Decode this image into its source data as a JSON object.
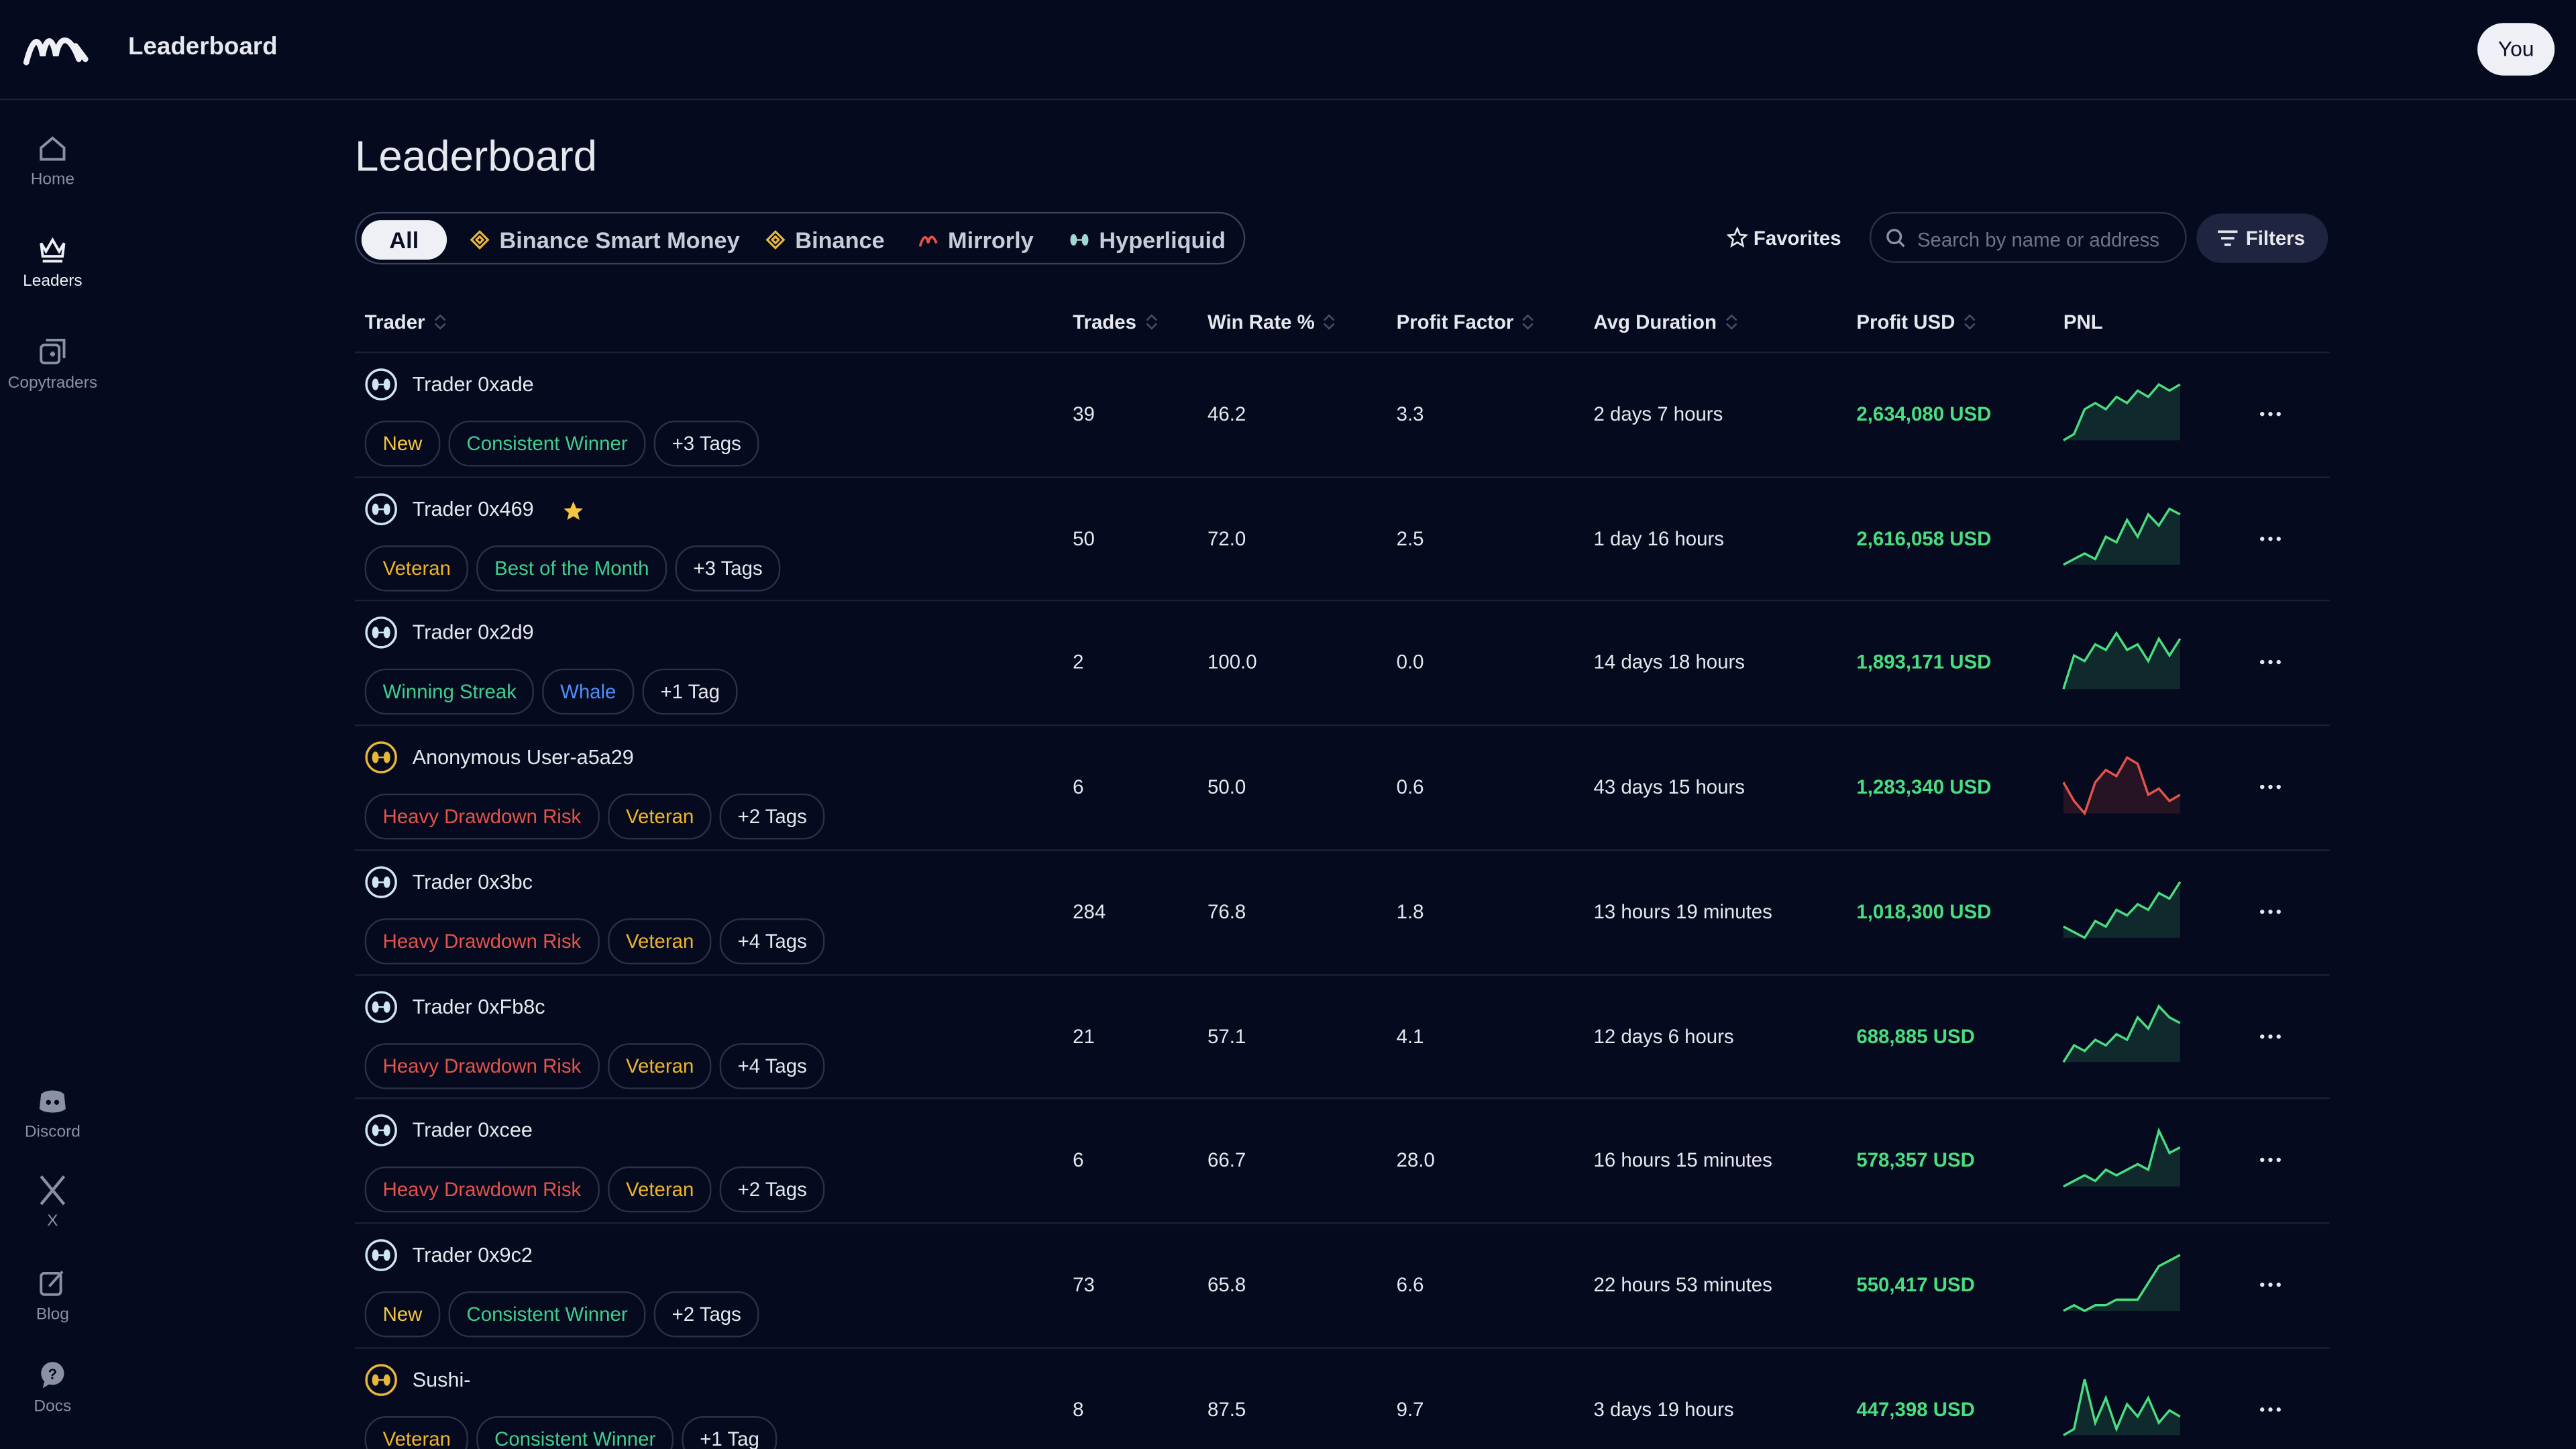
{
  "header": {
    "title": "Leaderboard",
    "user": "You"
  },
  "sidebar": {
    "items": [
      "Home",
      "Leaders",
      "Copytraders",
      "Discord",
      "X",
      "Blog",
      "Docs"
    ]
  },
  "page_title": "Leaderboard",
  "filters": {
    "tabs": [
      "All",
      "Binance Smart Money",
      "Binance",
      "Mirrorly",
      "Hyperliquid"
    ],
    "favorites": "Favorites",
    "search_placeholder": "Search by name or address",
    "filters_button": "Filters"
  },
  "table": {
    "columns": [
      "Trader",
      "Trades",
      "Win Rate %",
      "Profit Factor",
      "Avg Duration",
      "Profit USD",
      "PNL"
    ],
    "rows": [
      {
        "name": "Trader 0xade",
        "icon_color": "#cfe6f2",
        "favorite": false,
        "tags": [
          {
            "text": "New",
            "color": "#f5c542"
          },
          {
            "text": "Consistent Winner",
            "color": "#3ecf8e"
          },
          {
            "text": "+3 Tags",
            "color": "#e6e8ee"
          }
        ],
        "trades": "39",
        "win_rate": "46.2",
        "profit_factor": "3.3",
        "avg_duration": "2 days 7 hours",
        "profit_usd": "2,634,080 USD",
        "pnl_color": "#4ade80",
        "pnl": [
          1,
          2,
          6,
          7,
          6,
          8,
          7,
          9,
          8,
          10,
          9,
          10
        ]
      },
      {
        "name": "Trader 0x469",
        "icon_color": "#cfe6f2",
        "favorite": true,
        "tags": [
          {
            "text": "Veteran",
            "color": "#f0b429"
          },
          {
            "text": "Best of the Month",
            "color": "#3ecf8e"
          },
          {
            "text": "+3 Tags",
            "color": "#e6e8ee"
          }
        ],
        "trades": "50",
        "win_rate": "72.0",
        "profit_factor": "2.5",
        "avg_duration": "1 day 16 hours",
        "profit_usd": "2,616,058 USD",
        "pnl_color": "#4ade80",
        "pnl": [
          0,
          1,
          2,
          1,
          5,
          4,
          8,
          5,
          9,
          7,
          10,
          9
        ]
      },
      {
        "name": "Trader 0x2d9",
        "icon_color": "#cfe6f2",
        "favorite": false,
        "tags": [
          {
            "text": "Winning Streak",
            "color": "#3ecf8e"
          },
          {
            "text": "Whale",
            "color": "#4d8ef7"
          },
          {
            "text": "+1 Tag",
            "color": "#e6e8ee"
          }
        ],
        "trades": "2",
        "win_rate": "100.0",
        "profit_factor": "0.0",
        "avg_duration": "14 days 18 hours",
        "profit_usd": "1,893,171 USD",
        "pnl_color": "#4ade80",
        "pnl": [
          0,
          6,
          5,
          8,
          7,
          10,
          7,
          8,
          5,
          9,
          6,
          9
        ]
      },
      {
        "name": "Anonymous User-a5a29",
        "icon_color": "#e8b73a",
        "favorite": false,
        "tags": [
          {
            "text": "Heavy Drawdown Risk",
            "color": "#e5534b"
          },
          {
            "text": "Veteran",
            "color": "#f0b429"
          },
          {
            "text": "+2 Tags",
            "color": "#e6e8ee"
          }
        ],
        "trades": "6",
        "win_rate": "50.0",
        "profit_factor": "0.6",
        "avg_duration": "43 days 15 hours",
        "profit_usd": "1,283,340 USD",
        "pnl_color": "#e5534b",
        "pnl": [
          6,
          3,
          1,
          6,
          8,
          7,
          10,
          9,
          4,
          5,
          3,
          4
        ]
      },
      {
        "name": "Trader 0x3bc",
        "icon_color": "#cfe6f2",
        "favorite": false,
        "tags": [
          {
            "text": "Heavy Drawdown Risk",
            "color": "#e5534b"
          },
          {
            "text": "Veteran",
            "color": "#f0b429"
          },
          {
            "text": "+4 Tags",
            "color": "#e6e8ee"
          }
        ],
        "trades": "284",
        "win_rate": "76.8",
        "profit_factor": "1.8",
        "avg_duration": "13 hours 19 minutes",
        "profit_usd": "1,018,300 USD",
        "pnl_color": "#4ade80",
        "pnl": [
          2,
          1,
          0,
          3,
          2,
          5,
          4,
          6,
          5,
          8,
          7,
          10
        ]
      },
      {
        "name": "Trader 0xFb8c",
        "icon_color": "#cfe6f2",
        "favorite": false,
        "tags": [
          {
            "text": "Heavy Drawdown Risk",
            "color": "#e5534b"
          },
          {
            "text": "Veteran",
            "color": "#f0b429"
          },
          {
            "text": "+4 Tags",
            "color": "#e6e8ee"
          }
        ],
        "trades": "21",
        "win_rate": "57.1",
        "profit_factor": "4.1",
        "avg_duration": "12 days 6 hours",
        "profit_usd": "688,885 USD",
        "pnl_color": "#4ade80",
        "pnl": [
          0,
          3,
          2,
          4,
          3,
          5,
          4,
          8,
          6,
          10,
          8,
          7
        ]
      },
      {
        "name": "Trader 0xcee",
        "icon_color": "#cfe6f2",
        "favorite": false,
        "tags": [
          {
            "text": "Heavy Drawdown Risk",
            "color": "#e5534b"
          },
          {
            "text": "Veteran",
            "color": "#f0b429"
          },
          {
            "text": "+2 Tags",
            "color": "#e6e8ee"
          }
        ],
        "trades": "6",
        "win_rate": "66.7",
        "profit_factor": "28.0",
        "avg_duration": "16 hours 15 minutes",
        "profit_usd": "578,357 USD",
        "pnl_color": "#4ade80",
        "pnl": [
          0,
          1,
          2,
          1,
          3,
          2,
          3,
          4,
          3,
          10,
          6,
          7
        ]
      },
      {
        "name": "Trader 0x9c2",
        "icon_color": "#cfe6f2",
        "favorite": false,
        "tags": [
          {
            "text": "New",
            "color": "#f5c542"
          },
          {
            "text": "Consistent Winner",
            "color": "#3ecf8e"
          },
          {
            "text": "+2 Tags",
            "color": "#e6e8ee"
          }
        ],
        "trades": "73",
        "win_rate": "65.8",
        "profit_factor": "6.6",
        "avg_duration": "22 hours 53 minutes",
        "profit_usd": "550,417 USD",
        "pnl_color": "#4ade80",
        "pnl": [
          0,
          1,
          0,
          1,
          1,
          2,
          2,
          2,
          5,
          8,
          9,
          10
        ]
      },
      {
        "name": "Sushi-",
        "icon_color": "#e8b73a",
        "favorite": false,
        "tags": [
          {
            "text": "Veteran",
            "color": "#f0b429"
          },
          {
            "text": "Consistent Winner",
            "color": "#3ecf8e"
          },
          {
            "text": "+1 Tag",
            "color": "#e6e8ee"
          }
        ],
        "trades": "8",
        "win_rate": "87.5",
        "profit_factor": "9.7",
        "avg_duration": "3 days 19 hours",
        "profit_usd": "447,398 USD",
        "pnl_color": "#4ade80",
        "pnl": [
          1,
          2,
          10,
          3,
          7,
          2,
          6,
          4,
          7,
          3,
          5,
          4
        ]
      }
    ]
  }
}
